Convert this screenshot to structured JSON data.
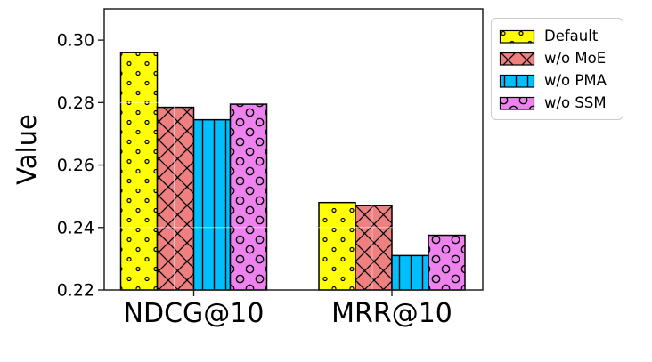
{
  "chart_data": {
    "type": "bar",
    "title": "",
    "xlabel": "",
    "ylabel": "Value",
    "categories": [
      "NDCG@10",
      "MRR@10"
    ],
    "series": [
      {
        "name": "Default",
        "color": "#FFFF00",
        "hatch": "dot",
        "values": [
          0.296,
          0.248
        ]
      },
      {
        "name": "w/o MoE",
        "color": "#F08080",
        "hatch": "x",
        "values": [
          0.2785,
          0.247
        ]
      },
      {
        "name": "w/o PMA",
        "color": "#00BFFF",
        "hatch": "vline",
        "values": [
          0.2745,
          0.231
        ]
      },
      {
        "name": "w/o SSM",
        "color": "#EE82EE",
        "hatch": "circle",
        "values": [
          0.2795,
          0.2375
        ]
      }
    ],
    "ylim": [
      0.22,
      0.31
    ],
    "yticks": [
      0.22,
      0.24,
      0.26,
      0.28,
      0.3
    ],
    "grid": "white gridlines drawn over bars",
    "legend_position": "outside top-right",
    "bar_edge_color": "#000000",
    "axis_color": "#222222"
  }
}
